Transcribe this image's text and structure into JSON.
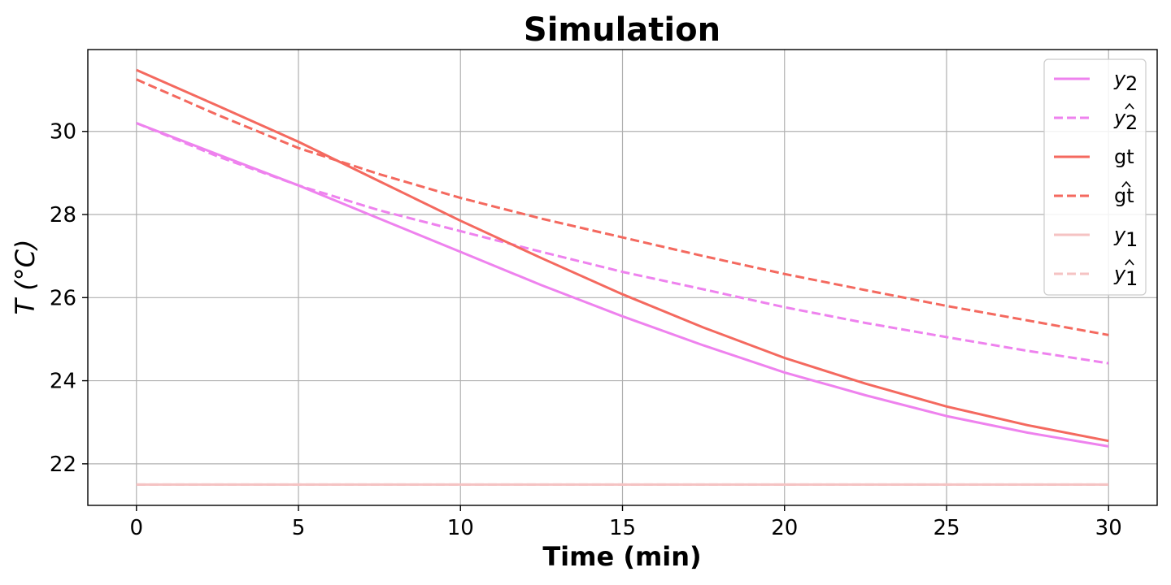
{
  "chart_data": {
    "type": "line",
    "title": "Simulation",
    "xlabel": "Time (min)",
    "ylabel": "T (°C)",
    "xlim": [
      -1.5,
      31.5
    ],
    "ylim": [
      21.0,
      31.97
    ],
    "x_ticks": [
      0,
      5,
      10,
      15,
      20,
      25,
      30
    ],
    "y_ticks": [
      22,
      24,
      26,
      28,
      30
    ],
    "grid": true,
    "legend_position": "top-right",
    "x": [
      0,
      2.5,
      5,
      7.5,
      10,
      12.5,
      15,
      17.5,
      20,
      22.5,
      25,
      27.5,
      30
    ],
    "series": [
      {
        "name": "y₂",
        "name_base": "y",
        "name_sub": "2",
        "color": "#ee82ee",
        "dash": "solid",
        "values": [
          30.2,
          29.45,
          28.7,
          27.9,
          27.1,
          26.3,
          25.55,
          24.85,
          24.2,
          23.65,
          23.15,
          22.75,
          22.42
        ]
      },
      {
        "name": "ŷ₂",
        "name_base": "y",
        "name_sub": "2",
        "name_hat": true,
        "color": "#ee82ee",
        "dash": "dashed",
        "values": [
          30.2,
          29.4,
          28.7,
          28.1,
          27.6,
          27.1,
          26.62,
          26.2,
          25.77,
          25.39,
          25.05,
          24.72,
          24.42
        ]
      },
      {
        "name": "gt",
        "name_base": "gt",
        "color": "#f4695f",
        "dash": "solid",
        "values": [
          31.48,
          30.62,
          29.75,
          28.8,
          27.85,
          26.95,
          26.08,
          25.28,
          24.55,
          23.93,
          23.38,
          22.93,
          22.55
        ]
      },
      {
        "name": "gt̂",
        "name_base": "gt",
        "name_hat": true,
        "color": "#f4695f",
        "dash": "dashed",
        "values": [
          31.25,
          30.4,
          29.6,
          28.97,
          28.4,
          27.9,
          27.45,
          27.0,
          26.57,
          26.18,
          25.8,
          25.45,
          25.1
        ]
      },
      {
        "name": "y₁",
        "name_base": "y",
        "name_sub": "1",
        "color": "#f5c3c3",
        "dash": "solid",
        "values": [
          21.5,
          21.5,
          21.5,
          21.5,
          21.5,
          21.5,
          21.5,
          21.5,
          21.5,
          21.5,
          21.5,
          21.5,
          21.5
        ]
      },
      {
        "name": "ŷ₁",
        "name_base": "y",
        "name_sub": "1",
        "name_hat": true,
        "color": "#f5c3c3",
        "dash": "dashed",
        "values": [
          21.5,
          21.5,
          21.5,
          21.5,
          21.5,
          21.5,
          21.5,
          21.5,
          21.5,
          21.5,
          21.5,
          21.5,
          21.5
        ]
      }
    ]
  }
}
